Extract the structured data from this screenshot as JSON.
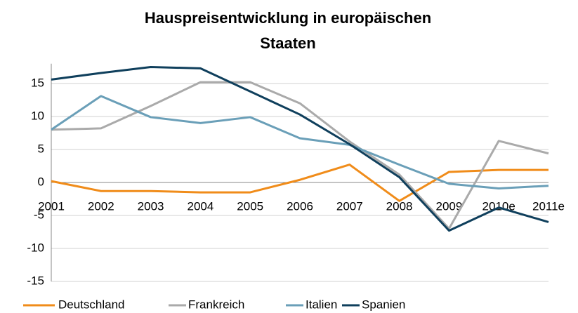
{
  "chart_data": {
    "type": "line",
    "title": "Hauspreisentwicklung in europäischen Staaten",
    "categories": [
      "2001",
      "2002",
      "2003",
      "2004",
      "2005",
      "2006",
      "2007",
      "2008",
      "2009",
      "2010e",
      "2011e"
    ],
    "series": [
      {
        "name": "Deutschland",
        "color": "#f08c1a",
        "values": [
          0.2,
          -1.3,
          -1.3,
          -1.5,
          -1.5,
          0.4,
          2.7,
          -2.8,
          1.6,
          1.9,
          1.9
        ]
      },
      {
        "name": "Frankreich",
        "color": "#aaaaaa",
        "values": [
          8.0,
          8.2,
          11.6,
          15.2,
          15.2,
          12.0,
          6.2,
          1.2,
          -7.0,
          6.3,
          4.4
        ]
      },
      {
        "name": "Italien",
        "color": "#6a9fb8",
        "values": [
          8.0,
          13.1,
          9.9,
          9.0,
          9.9,
          6.7,
          5.7,
          2.7,
          -0.2,
          -0.9,
          -0.5
        ]
      },
      {
        "name": "Spanien",
        "color": "#0f3f5c",
        "values": [
          15.6,
          16.6,
          17.5,
          17.3,
          13.8,
          10.3,
          5.8,
          0.8,
          -7.3,
          -3.8,
          -6.0
        ]
      }
    ],
    "ylim": [
      -15,
      18
    ],
    "yticks": [
      -15,
      -10,
      -5,
      0,
      5,
      10,
      15
    ],
    "grid": true,
    "legend": "bottom"
  }
}
